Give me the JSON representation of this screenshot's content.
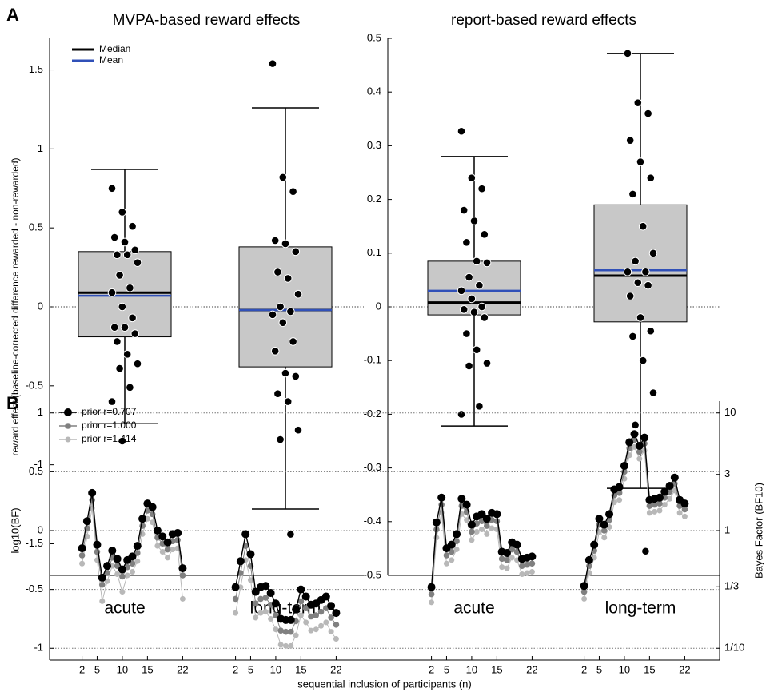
{
  "chart_data": [
    {
      "type": "box",
      "panel_label": "A",
      "title": "MVPA-based reward effects",
      "ylabel": "reward effect (baseline-corrected difference rewarded - non-rewarded)",
      "categories": [
        "acute",
        "long-term"
      ],
      "ylim": [
        -1.7,
        1.7
      ],
      "yticks": [
        -1.5,
        -1,
        -0.5,
        0,
        0.5,
        1,
        1.5
      ],
      "zero_line": true,
      "box_color": "#c8c8c8",
      "point_color": "#000000",
      "legend": [
        {
          "name": "Median",
          "color": "#000000"
        },
        {
          "name": "Mean",
          "color": "#3050b8"
        }
      ],
      "boxes": [
        {
          "q1": -0.19,
          "median": 0.09,
          "mean": 0.07,
          "q3": 0.35,
          "whisker_low": -0.74,
          "whisker_high": 0.87,
          "points": [
            0.75,
            0.6,
            0.51,
            0.44,
            0.41,
            0.36,
            0.33,
            0.33,
            0.28,
            0.2,
            0.12,
            0.09,
            0.0,
            -0.07,
            -0.13,
            -0.13,
            -0.17,
            -0.22,
            -0.3,
            -0.36,
            -0.39,
            -0.51,
            -0.6,
            -0.85
          ]
        },
        {
          "q1": -0.38,
          "median": -0.02,
          "mean": -0.02,
          "q3": 0.38,
          "whisker_low": -1.28,
          "whisker_high": 1.26,
          "points": [
            1.54,
            0.82,
            0.73,
            0.42,
            0.4,
            0.35,
            0.22,
            0.18,
            0.08,
            0.0,
            -0.03,
            -0.05,
            -0.1,
            -0.22,
            -0.28,
            -0.42,
            -0.44,
            -0.55,
            -0.6,
            -0.78,
            -0.84,
            -1.44
          ]
        }
      ]
    },
    {
      "type": "box",
      "title": "report-based reward effects",
      "categories": [
        "acute",
        "long-term"
      ],
      "ylim": [
        -0.5,
        0.5
      ],
      "yticks": [
        -0.5,
        -0.4,
        -0.3,
        -0.2,
        -0.1,
        0,
        0.1,
        0.2,
        0.3,
        0.4,
        0.5
      ],
      "zero_line": true,
      "box_color": "#c8c8c8",
      "point_color": "#000000",
      "median_color": "#000000",
      "mean_color": "#3050b8",
      "boxes": [
        {
          "q1": -0.015,
          "median": 0.008,
          "mean": 0.03,
          "q3": 0.085,
          "whisker_low": -0.222,
          "whisker_high": 0.28,
          "points": [
            0.327,
            0.24,
            0.22,
            0.18,
            0.16,
            0.135,
            0.12,
            0.085,
            0.082,
            0.055,
            0.04,
            0.03,
            0.015,
            0.0,
            -0.005,
            -0.01,
            -0.02,
            -0.05,
            -0.08,
            -0.105,
            -0.11,
            -0.185,
            -0.2
          ]
        },
        {
          "q1": -0.028,
          "median": 0.058,
          "mean": 0.068,
          "q3": 0.19,
          "whisker_low": -0.338,
          "whisker_high": 0.472,
          "points": [
            0.472,
            0.38,
            0.36,
            0.31,
            0.27,
            0.24,
            0.21,
            0.15,
            0.1,
            0.085,
            0.065,
            0.065,
            0.045,
            0.04,
            0.02,
            -0.02,
            -0.045,
            -0.055,
            -0.1,
            -0.16,
            -0.22,
            -0.455
          ]
        }
      ]
    },
    {
      "type": "line",
      "panel_label": "B",
      "xlabel": "sequential inclusion of participants (n)",
      "ylabel": "log10(BF)",
      "y2label": "Bayes Factor (BF10)",
      "x": [
        2,
        3,
        4,
        5,
        6,
        7,
        8,
        9,
        10,
        11,
        12,
        13,
        14,
        15,
        16,
        17,
        18,
        19,
        20,
        21,
        22
      ],
      "xlim": [
        0,
        24
      ],
      "xticks": [
        2,
        5,
        10,
        15,
        22
      ],
      "ylim": [
        -1.1,
        1.1
      ],
      "yticks": [
        -1,
        -0.5,
        0,
        0.5,
        1
      ],
      "grid": true,
      "y2lim": [
        0.0794,
        12.59
      ],
      "y2_log": true,
      "y2ticks": [
        {
          "value": 0.1,
          "label": "1/10"
        },
        {
          "value": 0.3333,
          "label": "1/3"
        },
        1,
        3,
        10
      ],
      "legend_position": "upper left",
      "series": [
        {
          "name": "prior r=0.707",
          "color": "#000000",
          "values": [
            [
              -0.15,
              0.08,
              0.32,
              -0.12,
              -0.4,
              -0.3,
              -0.17,
              -0.24,
              -0.33,
              -0.25,
              -0.22,
              -0.13,
              0.1,
              0.23,
              0.2,
              0.0,
              -0.05,
              -0.1,
              -0.03,
              -0.02,
              -0.32
            ],
            [
              -0.48,
              -0.26,
              -0.03,
              -0.2,
              -0.52,
              -0.48,
              -0.47,
              -0.53,
              -0.62,
              -0.75,
              -0.76,
              -0.76,
              -0.67,
              -0.5,
              -0.56,
              -0.63,
              -0.62,
              -0.59,
              -0.56,
              -0.64,
              -0.7
            ],
            [
              -0.48,
              0.07,
              0.28,
              -0.15,
              -0.12,
              -0.03,
              0.27,
              0.22,
              0.05,
              0.12,
              0.14,
              0.1,
              0.15,
              0.14,
              -0.18,
              -0.19,
              -0.1,
              -0.12,
              -0.24,
              -0.23,
              -0.22
            ],
            [
              -0.47,
              -0.25,
              -0.12,
              0.1,
              0.05,
              0.14,
              0.35,
              0.37,
              0.55,
              0.75,
              0.82,
              0.72,
              0.79,
              0.26,
              0.27,
              0.28,
              0.33,
              0.38,
              0.45,
              0.26,
              0.23
            ]
          ]
        },
        {
          "name": "prior r=1.000",
          "color": "#808080",
          "values": [
            [
              -0.21,
              0.02,
              0.26,
              -0.18,
              -0.46,
              -0.36,
              -0.23,
              -0.3,
              -0.39,
              -0.31,
              -0.28,
              -0.19,
              0.04,
              0.17,
              0.14,
              -0.06,
              -0.11,
              -0.16,
              -0.09,
              -0.08,
              -0.38
            ],
            [
              -0.58,
              -0.36,
              -0.13,
              -0.3,
              -0.62,
              -0.58,
              -0.57,
              -0.63,
              -0.72,
              -0.85,
              -0.86,
              -0.86,
              -0.77,
              -0.6,
              -0.66,
              -0.73,
              -0.72,
              -0.69,
              -0.66,
              -0.74,
              -0.8
            ],
            [
              -0.54,
              0.01,
              0.22,
              -0.21,
              -0.18,
              -0.09,
              0.21,
              0.16,
              -0.01,
              0.06,
              0.08,
              0.04,
              0.09,
              0.08,
              -0.24,
              -0.25,
              -0.16,
              -0.18,
              -0.3,
              -0.29,
              -0.28
            ],
            [
              -0.52,
              -0.3,
              -0.17,
              0.05,
              0.0,
              0.09,
              0.3,
              0.32,
              0.5,
              0.7,
              0.77,
              0.67,
              0.74,
              0.21,
              0.22,
              0.23,
              0.28,
              0.33,
              0.4,
              0.21,
              0.18
            ]
          ]
        },
        {
          "name": "prior r=1.414",
          "color": "#b8b8b8",
          "values": [
            [
              -0.28,
              -0.05,
              0.19,
              -0.25,
              -0.6,
              -0.43,
              -0.3,
              -0.37,
              -0.52,
              -0.38,
              -0.35,
              -0.26,
              -0.03,
              0.1,
              0.07,
              -0.13,
              -0.18,
              -0.23,
              -0.16,
              -0.15,
              -0.58
            ],
            [
              -0.7,
              -0.48,
              -0.25,
              -0.42,
              -0.74,
              -0.7,
              -0.69,
              -0.75,
              -0.84,
              -0.97,
              -0.98,
              -0.98,
              -0.89,
              -0.72,
              -0.78,
              -0.85,
              -0.84,
              -0.81,
              -0.78,
              -0.86,
              -0.92
            ],
            [
              -0.61,
              -0.06,
              0.15,
              -0.28,
              -0.25,
              -0.16,
              0.14,
              0.09,
              -0.08,
              -0.01,
              0.01,
              -0.03,
              0.02,
              0.01,
              -0.31,
              -0.32,
              -0.23,
              -0.25,
              -0.37,
              -0.36,
              -0.35
            ],
            [
              -0.58,
              -0.36,
              -0.23,
              -0.01,
              -0.06,
              0.03,
              0.24,
              0.26,
              0.44,
              0.64,
              0.71,
              0.61,
              0.68,
              0.15,
              0.16,
              0.17,
              0.22,
              0.27,
              0.34,
              0.15,
              0.12
            ]
          ]
        }
      ]
    }
  ]
}
